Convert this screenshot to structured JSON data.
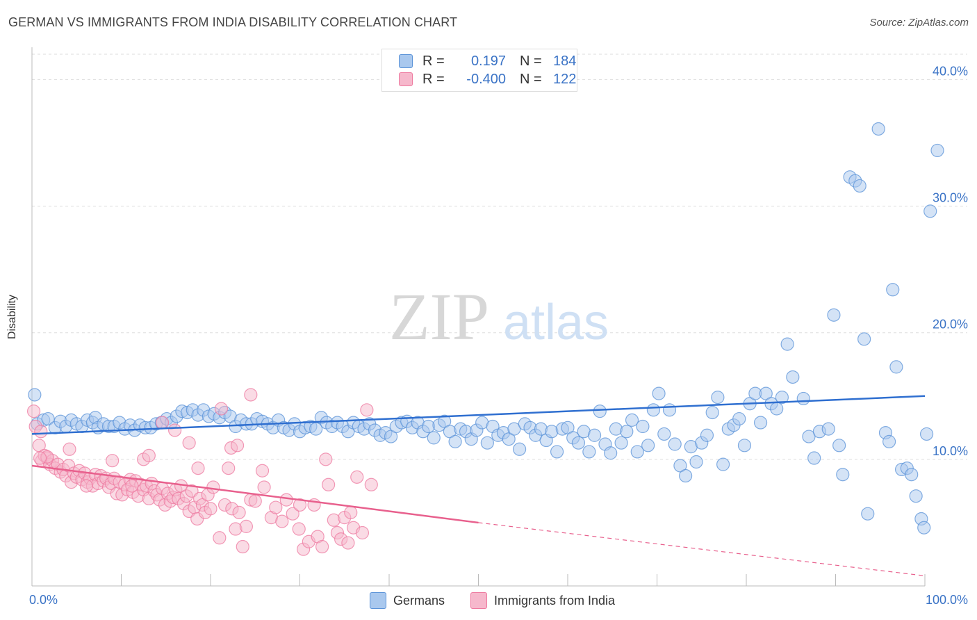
{
  "title": "GERMAN VS IMMIGRANTS FROM INDIA DISABILITY CORRELATION CHART",
  "source": "Source: ZipAtlas.com",
  "watermark": {
    "zip": "ZIP",
    "atlas": "atlas"
  },
  "colors": {
    "blue": "#5b93d8",
    "blue_fill": "#a9c8ee",
    "blue_line": "#2f6fd0",
    "pink": "#ee7aa0",
    "pink_fill": "#f6b8cc",
    "pink_line": "#e8608d",
    "axis_text": "#3a73c6",
    "grid": "#dddddd"
  },
  "stats": {
    "rows": [
      {
        "r_label": "R =",
        "r_value": "0.197",
        "n_label": "N =",
        "n_value": "184"
      },
      {
        "r_label": "R =",
        "r_value": "-0.400",
        "n_label": "N =",
        "n_value": "122"
      }
    ]
  },
  "legend": {
    "items": [
      "Germans",
      "Immigrants from India"
    ]
  },
  "chart_data": {
    "type": "scatter",
    "title": "GERMAN VS IMMIGRANTS FROM INDIA DISABILITY CORRELATION CHART",
    "xlabel": "",
    "ylabel": "Disability",
    "xlim": [
      0,
      100
    ],
    "ylim": [
      0,
      42
    ],
    "x_tick_labels": [
      "0.0%",
      "100.0%"
    ],
    "y_ticks": [
      10,
      20,
      30,
      40
    ],
    "y_tick_labels": [
      "10.0%",
      "20.0%",
      "30.0%",
      "40.0%"
    ],
    "grid": "horizontal dashed",
    "legend_position": "bottom-center",
    "series": [
      {
        "name": "Germans",
        "trend": {
          "x0": 0,
          "y0": 12.0,
          "x1": 100,
          "y1": 15.0
        },
        "points": [
          [
            0.3,
            15.1
          ],
          [
            0.6,
            12.8
          ],
          [
            1.3,
            13.1
          ],
          [
            1.8,
            13.2
          ],
          [
            2.6,
            12.5
          ],
          [
            3.2,
            13.0
          ],
          [
            3.8,
            12.6
          ],
          [
            4.4,
            13.1
          ],
          [
            5.0,
            12.8
          ],
          [
            5.6,
            12.6
          ],
          [
            6.2,
            13.1
          ],
          [
            6.8,
            12.9
          ],
          [
            7.1,
            13.3
          ],
          [
            7.4,
            12.5
          ],
          [
            8.0,
            12.8
          ],
          [
            8.6,
            12.6
          ],
          [
            9.2,
            12.6
          ],
          [
            9.8,
            12.9
          ],
          [
            10.4,
            12.4
          ],
          [
            11.0,
            12.7
          ],
          [
            11.5,
            12.3
          ],
          [
            12.1,
            12.7
          ],
          [
            12.7,
            12.5
          ],
          [
            13.3,
            12.5
          ],
          [
            13.9,
            12.8
          ],
          [
            14.5,
            12.9
          ],
          [
            15.1,
            13.2
          ],
          [
            15.6,
            12.9
          ],
          [
            16.2,
            13.4
          ],
          [
            16.8,
            13.8
          ],
          [
            17.4,
            13.7
          ],
          [
            18.0,
            13.9
          ],
          [
            18.6,
            13.5
          ],
          [
            19.2,
            13.9
          ],
          [
            19.8,
            13.4
          ],
          [
            20.4,
            13.6
          ],
          [
            21.0,
            13.3
          ],
          [
            21.6,
            13.7
          ],
          [
            22.2,
            13.4
          ],
          [
            22.8,
            12.6
          ],
          [
            23.4,
            13.1
          ],
          [
            24.0,
            12.8
          ],
          [
            24.6,
            12.8
          ],
          [
            25.2,
            13.2
          ],
          [
            25.8,
            13.0
          ],
          [
            26.4,
            12.8
          ],
          [
            27.0,
            12.5
          ],
          [
            27.6,
            13.1
          ],
          [
            28.2,
            12.5
          ],
          [
            28.8,
            12.3
          ],
          [
            29.4,
            12.8
          ],
          [
            30.0,
            12.2
          ],
          [
            30.6,
            12.5
          ],
          [
            31.2,
            12.6
          ],
          [
            31.8,
            12.4
          ],
          [
            32.4,
            13.3
          ],
          [
            33.0,
            12.9
          ],
          [
            33.6,
            12.6
          ],
          [
            34.2,
            12.9
          ],
          [
            34.8,
            12.6
          ],
          [
            35.4,
            12.2
          ],
          [
            36.0,
            12.9
          ],
          [
            36.6,
            12.6
          ],
          [
            37.2,
            12.4
          ],
          [
            37.8,
            12.8
          ],
          [
            38.4,
            12.3
          ],
          [
            39.0,
            11.9
          ],
          [
            39.6,
            12.1
          ],
          [
            40.2,
            11.8
          ],
          [
            40.8,
            12.6
          ],
          [
            41.4,
            12.9
          ],
          [
            42.0,
            13.0
          ],
          [
            42.6,
            12.5
          ],
          [
            43.2,
            12.9
          ],
          [
            43.8,
            12.2
          ],
          [
            44.4,
            12.6
          ],
          [
            45.0,
            11.7
          ],
          [
            45.6,
            12.7
          ],
          [
            46.2,
            13.0
          ],
          [
            46.8,
            12.2
          ],
          [
            47.4,
            11.4
          ],
          [
            48.0,
            12.4
          ],
          [
            48.6,
            12.2
          ],
          [
            49.2,
            11.6
          ],
          [
            49.8,
            12.3
          ],
          [
            50.4,
            12.9
          ],
          [
            51.0,
            11.3
          ],
          [
            51.6,
            12.6
          ],
          [
            52.2,
            11.9
          ],
          [
            52.8,
            12.1
          ],
          [
            53.4,
            11.6
          ],
          [
            54.0,
            12.4
          ],
          [
            54.6,
            10.8
          ],
          [
            55.2,
            12.8
          ],
          [
            55.8,
            12.5
          ],
          [
            56.4,
            11.9
          ],
          [
            57.0,
            12.4
          ],
          [
            57.6,
            11.5
          ],
          [
            58.2,
            12.2
          ],
          [
            58.8,
            10.6
          ],
          [
            59.4,
            12.4
          ],
          [
            60.0,
            12.5
          ],
          [
            60.6,
            11.7
          ],
          [
            61.2,
            11.3
          ],
          [
            61.8,
            12.2
          ],
          [
            62.4,
            10.6
          ],
          [
            63.0,
            11.9
          ],
          [
            63.6,
            13.8
          ],
          [
            64.2,
            11.2
          ],
          [
            64.8,
            10.5
          ],
          [
            65.4,
            12.4
          ],
          [
            66.0,
            11.3
          ],
          [
            66.6,
            12.2
          ],
          [
            67.2,
            13.1
          ],
          [
            67.8,
            10.6
          ],
          [
            68.4,
            12.6
          ],
          [
            69.0,
            11.1
          ],
          [
            69.6,
            13.9
          ],
          [
            70.2,
            15.2
          ],
          [
            70.8,
            12.0
          ],
          [
            71.4,
            13.9
          ],
          [
            72.0,
            11.2
          ],
          [
            72.6,
            9.5
          ],
          [
            73.2,
            8.7
          ],
          [
            73.8,
            11.0
          ],
          [
            74.4,
            9.8
          ],
          [
            75.0,
            11.3
          ],
          [
            75.6,
            11.9
          ],
          [
            76.2,
            13.7
          ],
          [
            76.8,
            14.9
          ],
          [
            77.4,
            9.6
          ],
          [
            78.0,
            12.4
          ],
          [
            78.6,
            12.7
          ],
          [
            79.2,
            13.2
          ],
          [
            79.8,
            11.1
          ],
          [
            80.4,
            14.4
          ],
          [
            81.0,
            15.2
          ],
          [
            81.6,
            12.9
          ],
          [
            82.2,
            15.2
          ],
          [
            82.8,
            14.4
          ],
          [
            83.4,
            14.0
          ],
          [
            84.0,
            14.9
          ],
          [
            84.6,
            19.1
          ],
          [
            85.2,
            16.5
          ],
          [
            86.4,
            14.8
          ],
          [
            87.0,
            11.8
          ],
          [
            87.6,
            10.1
          ],
          [
            88.2,
            12.2
          ],
          [
            89.2,
            12.4
          ],
          [
            89.8,
            21.4
          ],
          [
            90.4,
            11.1
          ],
          [
            90.8,
            8.8
          ],
          [
            91.6,
            32.3
          ],
          [
            92.2,
            32.0
          ],
          [
            92.7,
            31.6
          ],
          [
            93.2,
            19.5
          ],
          [
            93.6,
            5.7
          ],
          [
            94.8,
            36.1
          ],
          [
            95.6,
            12.1
          ],
          [
            96.0,
            11.4
          ],
          [
            96.4,
            23.4
          ],
          [
            96.8,
            17.3
          ],
          [
            97.4,
            9.2
          ],
          [
            98.0,
            9.3
          ],
          [
            98.5,
            8.8
          ],
          [
            99.0,
            7.1
          ],
          [
            99.6,
            5.3
          ],
          [
            99.9,
            4.6
          ],
          [
            100.2,
            12.0
          ],
          [
            100.6,
            29.6
          ],
          [
            101.4,
            34.4
          ]
        ]
      },
      {
        "name": "Immigrants from India",
        "trend": {
          "x0": 0,
          "y0": 9.5,
          "x1": 50,
          "y1": 5.0,
          "dash_to": {
            "x": 100,
            "y": 0.8
          }
        },
        "points": [
          [
            0.2,
            13.8
          ],
          [
            0.4,
            12.6
          ],
          [
            0.8,
            11.1
          ],
          [
            1.1,
            9.9
          ],
          [
            1.4,
            10.3
          ],
          [
            1.7,
            10.1
          ],
          [
            2.0,
            9.6
          ],
          [
            2.3,
            9.9
          ],
          [
            2.6,
            9.3
          ],
          [
            2.9,
            9.6
          ],
          [
            3.2,
            9.0
          ],
          [
            3.5,
            9.2
          ],
          [
            3.8,
            8.7
          ],
          [
            4.1,
            9.5
          ],
          [
            4.4,
            8.2
          ],
          [
            4.7,
            8.9
          ],
          [
            5.0,
            8.6
          ],
          [
            5.3,
            9.1
          ],
          [
            5.6,
            8.4
          ],
          [
            5.9,
            8.9
          ],
          [
            6.2,
            8.2
          ],
          [
            6.5,
            8.5
          ],
          [
            6.8,
            7.9
          ],
          [
            7.1,
            8.8
          ],
          [
            7.4,
            8.1
          ],
          [
            7.7,
            8.7
          ],
          [
            8.0,
            8.3
          ],
          [
            8.3,
            8.5
          ],
          [
            8.6,
            7.8
          ],
          [
            8.9,
            8.1
          ],
          [
            9.2,
            8.5
          ],
          [
            9.5,
            7.3
          ],
          [
            9.8,
            8.2
          ],
          [
            10.1,
            7.2
          ],
          [
            10.4,
            8.0
          ],
          [
            10.7,
            7.6
          ],
          [
            11.0,
            8.4
          ],
          [
            11.3,
            7.4
          ],
          [
            11.6,
            8.3
          ],
          [
            11.9,
            7.1
          ],
          [
            12.2,
            8.0
          ],
          [
            12.5,
            7.6
          ],
          [
            12.8,
            7.9
          ],
          [
            13.1,
            6.9
          ],
          [
            13.4,
            8.1
          ],
          [
            13.7,
            7.5
          ],
          [
            14.0,
            7.2
          ],
          [
            14.3,
            6.8
          ],
          [
            14.6,
            7.7
          ],
          [
            14.9,
            6.4
          ],
          [
            15.2,
            7.3
          ],
          [
            15.5,
            6.7
          ],
          [
            15.8,
            7.0
          ],
          [
            16.1,
            7.6
          ],
          [
            16.4,
            6.9
          ],
          [
            16.7,
            7.9
          ],
          [
            17.0,
            6.5
          ],
          [
            17.3,
            7.1
          ],
          [
            17.6,
            5.9
          ],
          [
            17.9,
            7.5
          ],
          [
            18.2,
            6.2
          ],
          [
            18.5,
            5.3
          ],
          [
            18.8,
            6.9
          ],
          [
            19.1,
            6.4
          ],
          [
            19.4,
            5.8
          ],
          [
            19.7,
            7.2
          ],
          [
            20.0,
            6.1
          ],
          [
            20.3,
            7.8
          ],
          [
            21.0,
            3.8
          ],
          [
            21.6,
            6.4
          ],
          [
            22.0,
            9.3
          ],
          [
            22.4,
            6.1
          ],
          [
            22.8,
            4.5
          ],
          [
            23.2,
            5.8
          ],
          [
            23.6,
            3.1
          ],
          [
            24.0,
            4.7
          ],
          [
            24.5,
            6.8
          ],
          [
            25.0,
            6.7
          ],
          [
            26.0,
            7.8
          ],
          [
            26.8,
            5.4
          ],
          [
            28.0,
            5.1
          ],
          [
            28.5,
            6.8
          ],
          [
            29.2,
            5.7
          ],
          [
            30.0,
            6.4
          ],
          [
            30.4,
            2.9
          ],
          [
            31.0,
            3.5
          ],
          [
            31.6,
            6.4
          ],
          [
            32.0,
            3.9
          ],
          [
            32.5,
            3.1
          ],
          [
            33.2,
            8.0
          ],
          [
            33.8,
            5.2
          ],
          [
            34.2,
            4.2
          ],
          [
            34.6,
            3.7
          ],
          [
            35.0,
            5.4
          ],
          [
            35.4,
            3.4
          ],
          [
            36.0,
            4.6
          ],
          [
            36.4,
            8.6
          ],
          [
            37.0,
            4.2
          ],
          [
            37.5,
            13.9
          ],
          [
            38.0,
            8.0
          ],
          [
            24.5,
            15.1
          ],
          [
            21.2,
            14.0
          ],
          [
            17.6,
            11.3
          ],
          [
            22.3,
            10.9
          ],
          [
            23.0,
            11.1
          ],
          [
            14.6,
            12.9
          ],
          [
            9.0,
            9.9
          ],
          [
            11.2,
            7.9
          ],
          [
            12.5,
            10.0
          ],
          [
            13.1,
            10.3
          ],
          [
            6.1,
            7.9
          ],
          [
            4.2,
            10.8
          ],
          [
            1.7,
            10.2
          ],
          [
            0.9,
            10.1
          ],
          [
            1.0,
            12.2
          ],
          [
            16.0,
            12.3
          ],
          [
            18.6,
            9.3
          ],
          [
            25.8,
            9.1
          ],
          [
            27.3,
            6.2
          ],
          [
            29.9,
            4.5
          ],
          [
            32.9,
            10.0
          ],
          [
            35.7,
            5.8
          ]
        ]
      }
    ]
  }
}
